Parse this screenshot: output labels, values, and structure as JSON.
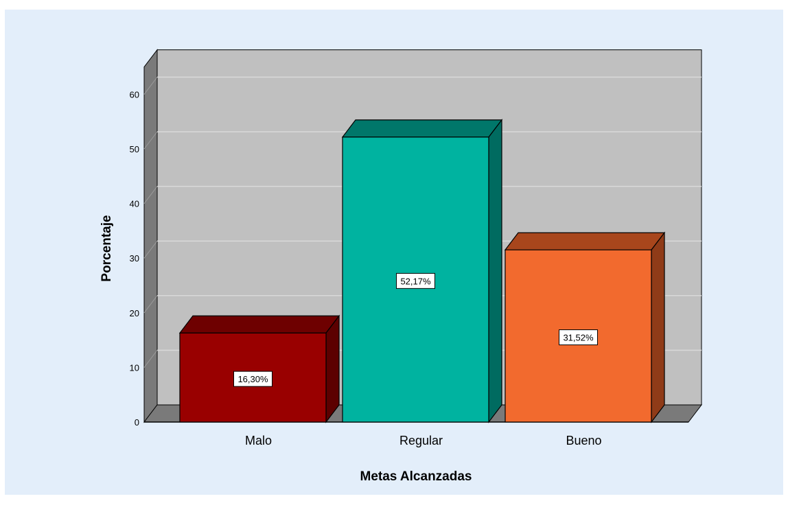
{
  "chart_data": {
    "type": "bar",
    "title": "",
    "xlabel": "Metas Alcanzadas",
    "ylabel": "Porcentaje",
    "categories": [
      "Malo",
      "Regular",
      "Bueno"
    ],
    "values": [
      16.3,
      52.17,
      31.52
    ],
    "data_labels": [
      "16,30%",
      "52,17%",
      "31,52%"
    ],
    "yticks": [
      0,
      10,
      20,
      30,
      40,
      50,
      60
    ],
    "ylim": [
      0,
      65
    ],
    "grid": true,
    "style": "3d",
    "colors": {
      "front": [
        "#990000",
        "#00b3a0",
        "#f26a2e"
      ],
      "side": [
        "#5c0000",
        "#006b60",
        "#8f3b18"
      ],
      "top": [
        "#6e0000",
        "#00776a",
        "#a8461c"
      ],
      "wall": "#c0c0c0",
      "floor": "#7a7a7a"
    }
  }
}
